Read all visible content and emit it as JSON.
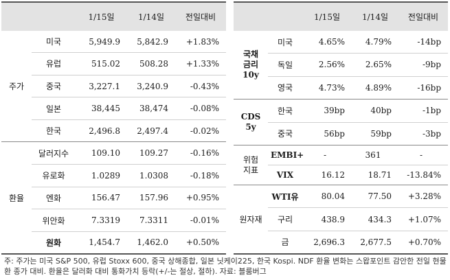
{
  "left_table": {
    "headers": [
      "",
      "",
      "1/15일",
      "1/14일",
      "전일대비"
    ],
    "groups": [
      {
        "name": "주가",
        "rows": [
          {
            "label": "미국",
            "v1": "5,949.9",
            "v2": "5,842.9",
            "chg": "+1.83%"
          },
          {
            "label": "유럽",
            "v1": "515.02",
            "v2": "508.28",
            "chg": "+1.33%"
          },
          {
            "label": "중국",
            "v1": "3,227.1",
            "v2": "3,240.9",
            "chg": "-0.43%"
          },
          {
            "label": "일본",
            "v1": "38,445",
            "v2": "38,474",
            "chg": "-0.08%"
          },
          {
            "label": "한국",
            "v1": "2,496.8",
            "v2": "2,497.4",
            "chg": "-0.02%"
          }
        ]
      },
      {
        "name": "환율",
        "rows": [
          {
            "label": "달러지수",
            "v1": "109.10",
            "v2": "109.27",
            "chg": "-0.16%"
          },
          {
            "label": "유로화",
            "v1": "1.0289",
            "v2": "1.0308",
            "chg": "-0.18%"
          },
          {
            "label": "엔화",
            "v1": "156.47",
            "v2": "157.96",
            "chg": "+0.95%"
          },
          {
            "label": "위안화",
            "v1": "7.3319",
            "v2": "7.3311",
            "chg": "-0.01%"
          },
          {
            "label": "원화",
            "v1": "1,454.7",
            "v2": "1,462.0",
            "chg": "+0.50%"
          }
        ]
      }
    ]
  },
  "right_table": {
    "headers": [
      "",
      "",
      "1/15일",
      "1/14일",
      "전일대비"
    ],
    "groups": [
      {
        "name": "국채\n금리\n10y",
        "rows": [
          {
            "label": "미국",
            "v1": "4.65%",
            "v2": "4.79%",
            "chg": "-14bp"
          },
          {
            "label": "독일",
            "v1": "2.56%",
            "v2": "2.65%",
            "chg": "-9bp"
          },
          {
            "label": "영국",
            "v1": "4.73%",
            "v2": "4.89%",
            "chg": "-16bp"
          }
        ]
      },
      {
        "name": "CDS\n5y",
        "rows": [
          {
            "label": "한국",
            "v1": "39bp",
            "v2": "40bp",
            "chg": "-1bp"
          },
          {
            "label": "중국",
            "v1": "56bp",
            "v2": "59bp",
            "chg": "-3bp"
          }
        ]
      },
      {
        "name": "위험\n지표",
        "rows": [
          {
            "label": "EMBI+",
            "v1": "-",
            "v2": "361",
            "chg": "-"
          },
          {
            "label": "VIX",
            "v1": "16.12",
            "v2": "18.71",
            "chg": "-13.84%"
          }
        ]
      },
      {
        "name": "원자재",
        "rows": [
          {
            "label": "WTI유",
            "v1": "80.04",
            "v2": "77.50",
            "chg": "+3.28%"
          },
          {
            "label": "구리",
            "v1": "438.9",
            "v2": "434.3",
            "chg": "+1.07%"
          },
          {
            "label": "금",
            "v1": "2,696.3",
            "v2": "2,677.5",
            "chg": "+0.70%"
          }
        ]
      }
    ]
  },
  "footnote": "주: 주가는 미국 S&P 500, 유럽 Stoxx 600, 중국 상해종합, 일본 닛케이225, 한국 Kospi. NDF 환율 변화는 스왑포인트 감안한 전일 현물환 종가 대비. 환율은 달러화 대비 통화가치 등락(+/-는 절상, 절하). 자료: 블룸버그"
}
